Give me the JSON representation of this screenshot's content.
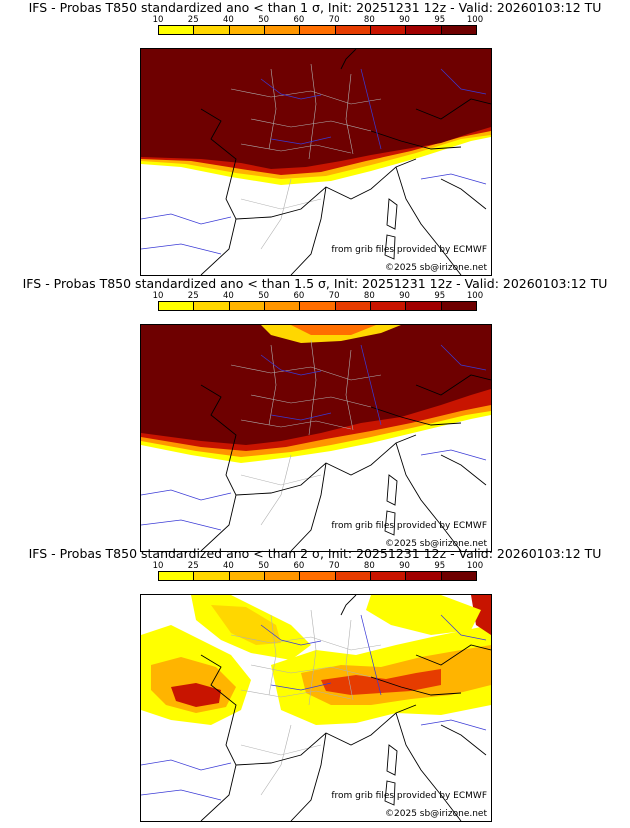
{
  "panels": [
    {
      "title": "IFS - Probas T850  standardized ano < than 1 σ, Init: 20251231 12z - Valid: 20260103:12 TU",
      "threshold": "1 σ"
    },
    {
      "title": "IFS - Probas T850  standardized ano < than 1.5 σ, Init: 20251231 12z - Valid: 20260103:12 TU",
      "threshold": "1.5 σ"
    },
    {
      "title": "IFS - Probas T850  standardized ano < than 2 σ, Init: 20251231 12z - Valid: 20260103:12 TU",
      "threshold": "2 σ"
    }
  ],
  "colorbar": {
    "ticks": [
      "10",
      "25",
      "40",
      "50",
      "60",
      "70",
      "80",
      "90",
      "95",
      "100"
    ],
    "colors": [
      "#ffff00",
      "#ffd700",
      "#ffb400",
      "#ff9600",
      "#ff6e00",
      "#e63c00",
      "#c81400",
      "#a00000",
      "#6e0000"
    ]
  },
  "credits": {
    "grib": "from grib files provided by ECMWF",
    "copyright": "©2025 sb@irizone.net"
  },
  "colors": {
    "land_border": "#000000",
    "admin_border": "#b0b0b0",
    "river": "#3a3ad6",
    "background": "#ffffff"
  }
}
